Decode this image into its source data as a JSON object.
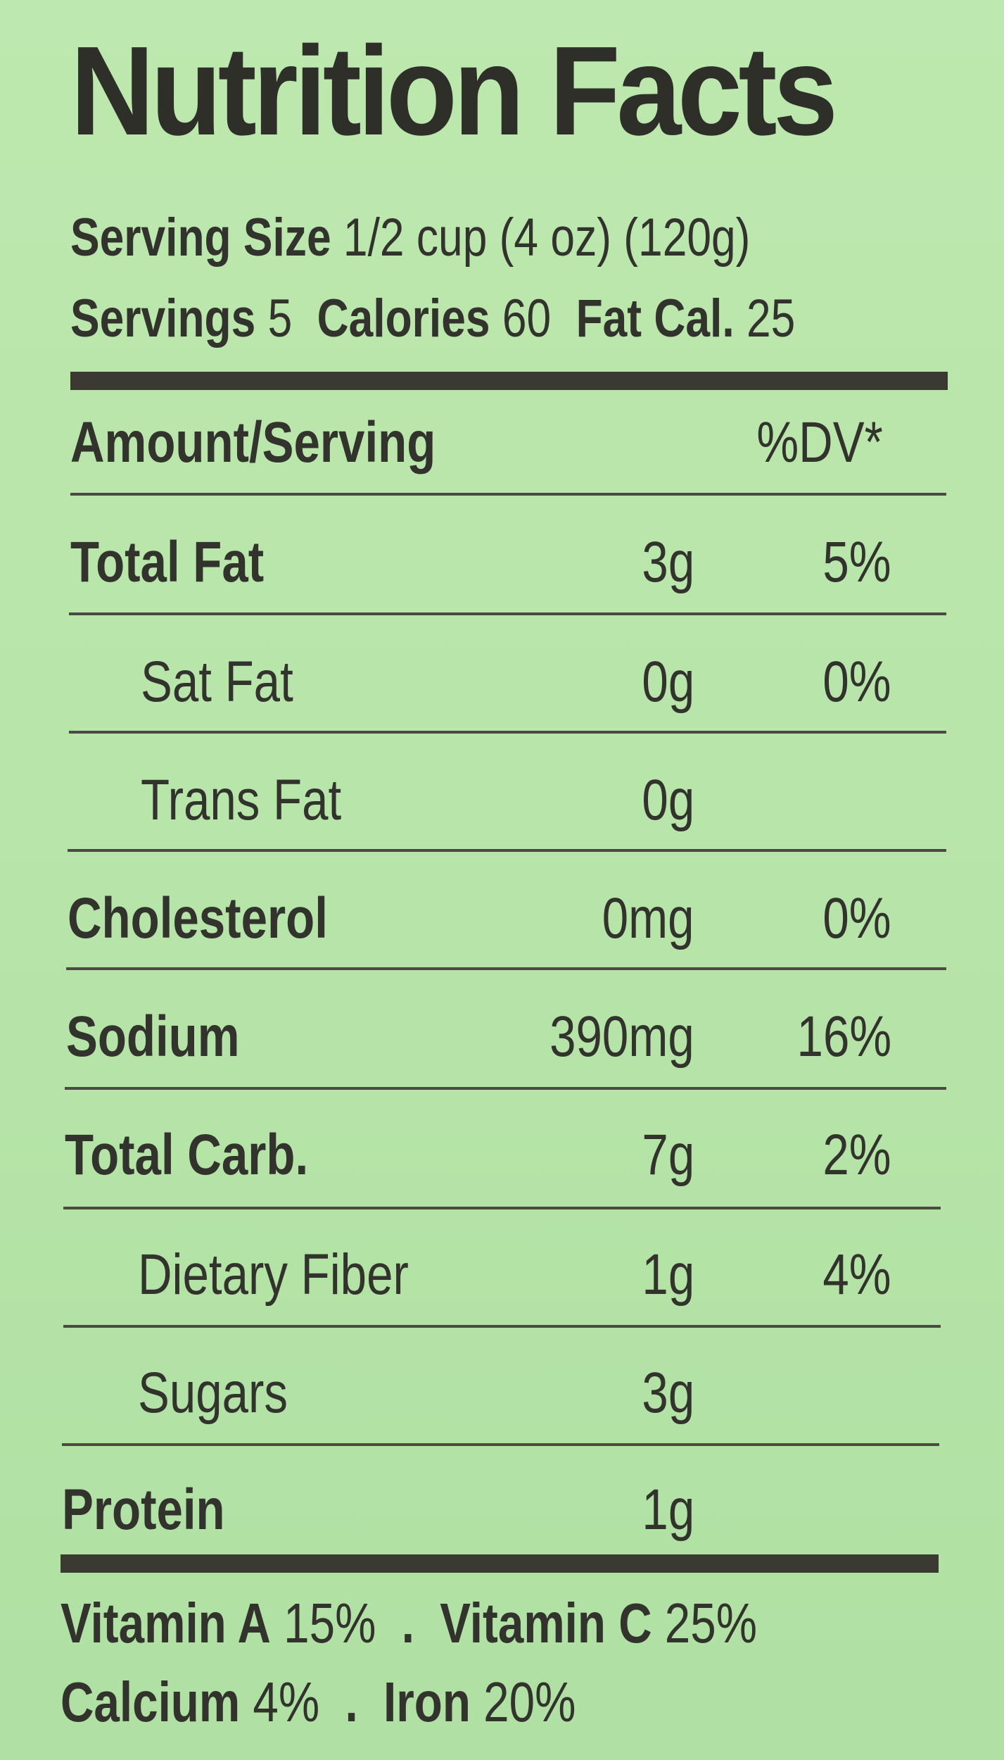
{
  "title": "Nutrition Facts",
  "serving": {
    "size_label": "Serving Size",
    "size_value": "1/2 cup (4 oz) (120g)",
    "servings_label": "Servings",
    "servings_value": "5",
    "calories_label": "Calories",
    "calories_value": "60",
    "fatcal_label": "Fat Cal.",
    "fatcal_value": "25"
  },
  "header": {
    "amount_label": "Amount/Serving",
    "dv_label": "%DV*"
  },
  "rows": [
    {
      "label": "Total Fat",
      "amount": "3g",
      "dv": "5%"
    },
    {
      "label": "Sat Fat",
      "amount": "0g",
      "dv": "0%"
    },
    {
      "label": "Trans Fat",
      "amount": "0g",
      "dv": ""
    },
    {
      "label": "Cholesterol",
      "amount": "0mg",
      "dv": "0%"
    },
    {
      "label": "Sodium",
      "amount": "390mg",
      "dv": "16%"
    },
    {
      "label": "Total Carb.",
      "amount": "7g",
      "dv": "2%"
    },
    {
      "label": "Dietary Fiber",
      "amount": "1g",
      "dv": "4%"
    },
    {
      "label": "Sugars",
      "amount": "3g",
      "dv": ""
    },
    {
      "label": "Protein",
      "amount": "1g",
      "dv": ""
    }
  ],
  "vitamins": {
    "vitamin_a_label": "Vitamin A",
    "vitamin_a_value": "15%",
    "vitamin_c_label": "Vitamin C",
    "vitamin_c_value": "25%",
    "calcium_label": "Calcium",
    "calcium_value": "4%",
    "iron_label": "Iron",
    "iron_value": "20%",
    "separator": "."
  },
  "colors": {
    "background": "#b6e4a8",
    "text": "#33332d"
  }
}
